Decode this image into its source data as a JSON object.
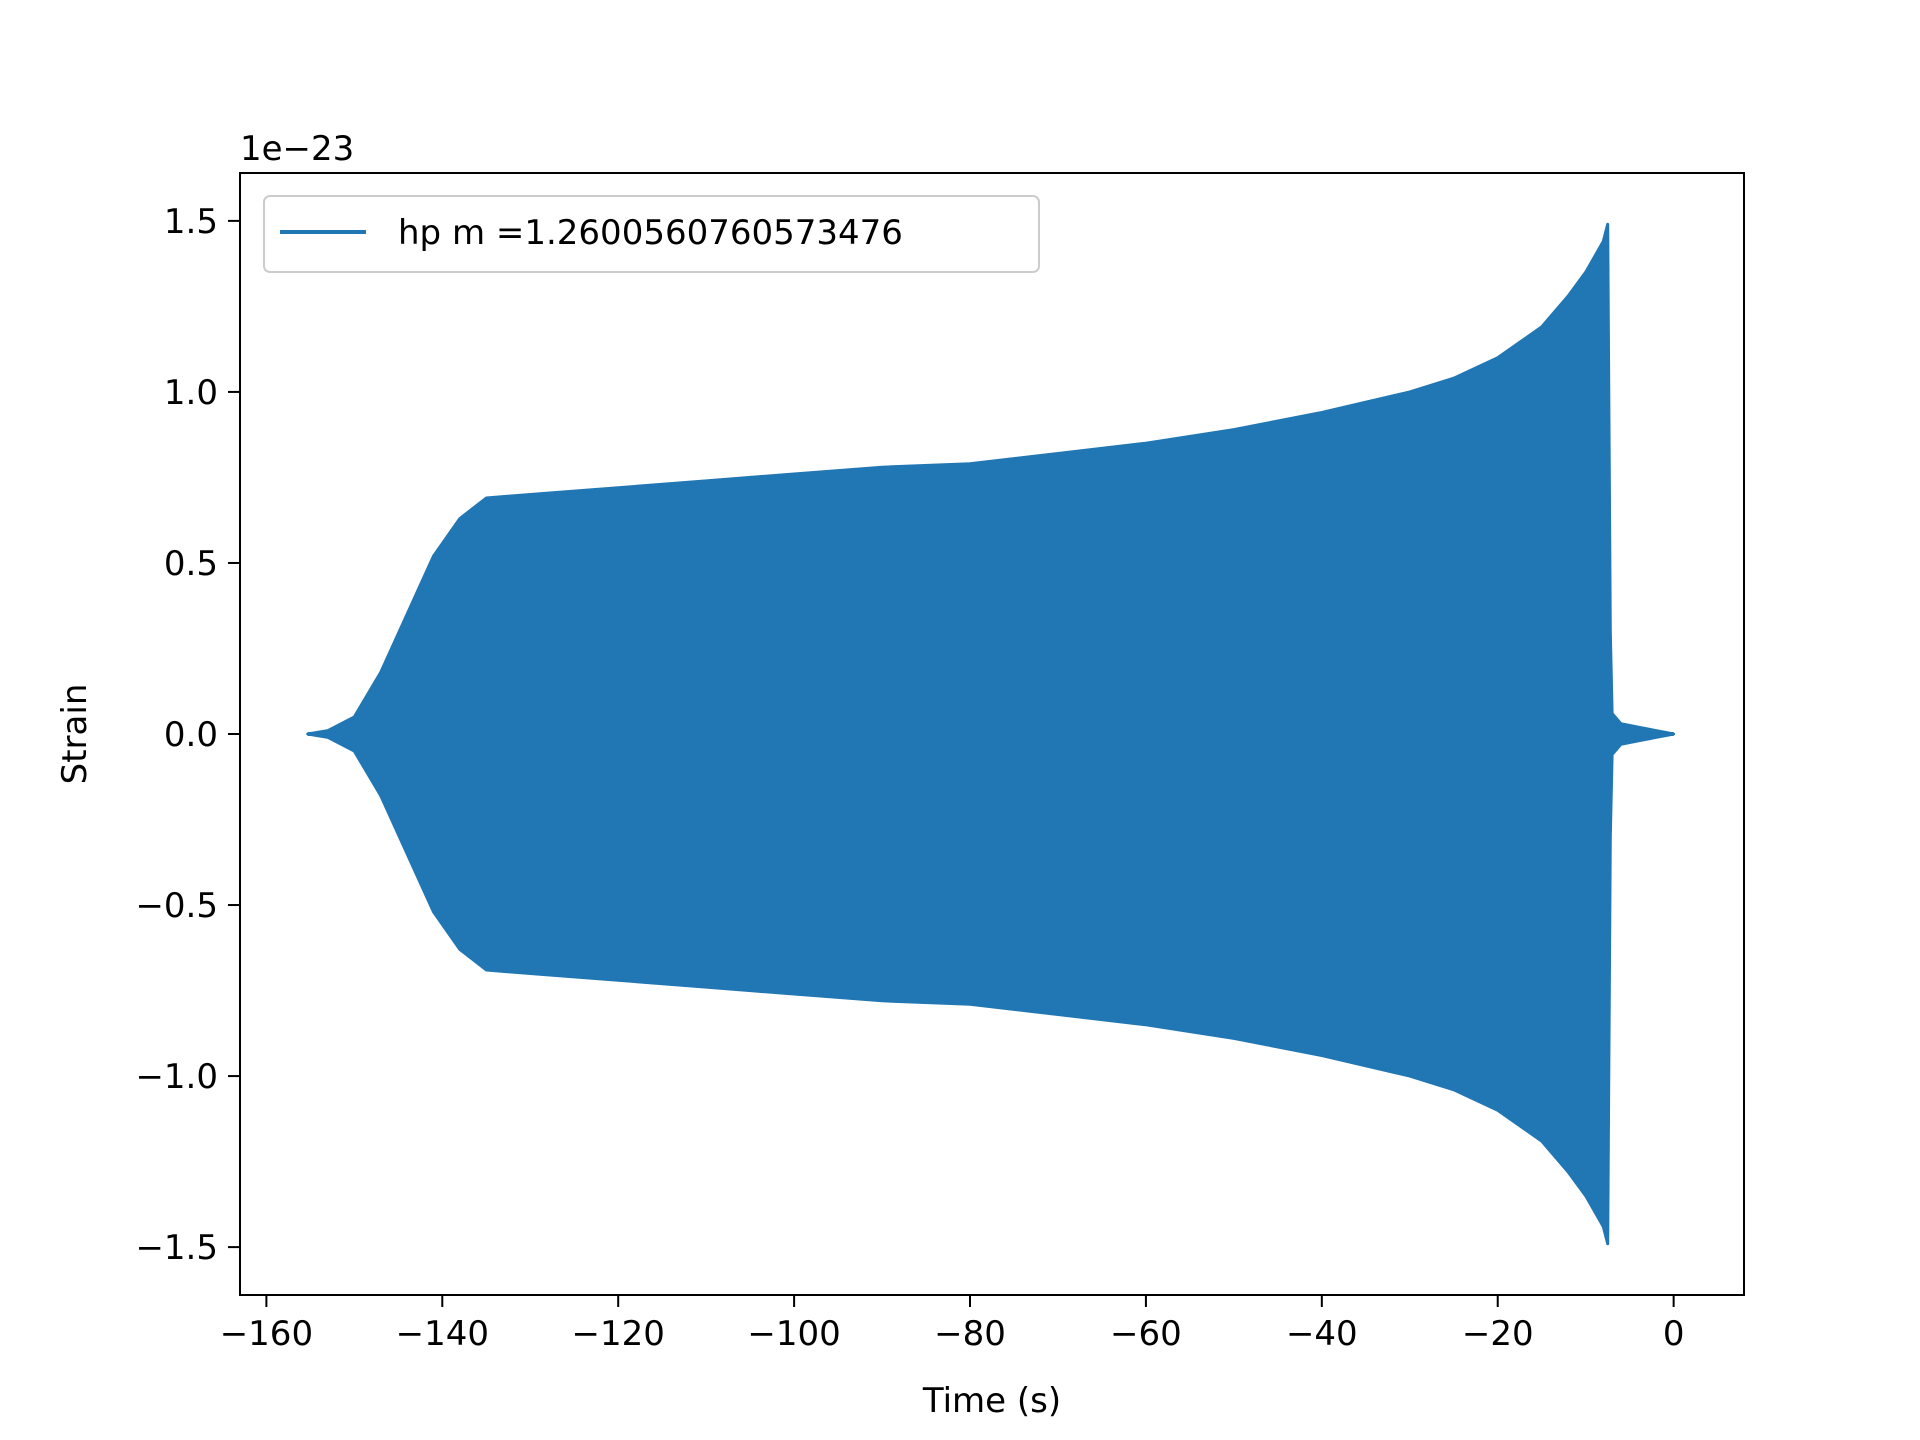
{
  "chart_data": {
    "type": "line",
    "title": "",
    "xlabel": "Time (s)",
    "ylabel": "Strain",
    "offset_label": "1e−23",
    "xlim": [
      -163,
      8
    ],
    "ylim": [
      -1.64,
      1.64
    ],
    "x_ticks": [
      -160,
      -140,
      -120,
      -100,
      -80,
      -60,
      -40,
      -20,
      0
    ],
    "x_tick_labels": [
      "−160",
      "−140",
      "−120",
      "−100",
      "−80",
      "−60",
      "−40",
      "−20",
      "0"
    ],
    "y_ticks": [
      -1.5,
      -1.0,
      -0.5,
      0.0,
      0.5,
      1.0,
      1.5
    ],
    "y_tick_labels": [
      "−1.5",
      "−1.0",
      "−0.5",
      "0.0",
      "0.5",
      "1.0",
      "1.5"
    ],
    "grid": false,
    "legend_position": "upper-left",
    "series": [
      {
        "name": "hp m =1.2600560760573476",
        "color": "#2077b4",
        "envelope": {
          "x": [
            -155.3,
            -153,
            -150,
            -147,
            -144,
            -141,
            -138,
            -135,
            -130,
            -125,
            -120,
            -110,
            -100,
            -90,
            -80,
            -70,
            -60,
            -50,
            -40,
            -30,
            -25,
            -20,
            -15,
            -12,
            -10,
            -8,
            -7.5,
            -7.2,
            -7,
            -6,
            -4,
            -2,
            0
          ],
          "upper": [
            0.0,
            0.01,
            0.05,
            0.18,
            0.35,
            0.52,
            0.63,
            0.69,
            0.7,
            0.71,
            0.72,
            0.74,
            0.76,
            0.78,
            0.79,
            0.82,
            0.85,
            0.89,
            0.94,
            1.0,
            1.04,
            1.1,
            1.19,
            1.28,
            1.35,
            1.44,
            1.49,
            0.3,
            0.06,
            0.03,
            0.02,
            0.01,
            0.0
          ],
          "lower": [
            0.0,
            -0.01,
            -0.05,
            -0.18,
            -0.35,
            -0.52,
            -0.63,
            -0.69,
            -0.7,
            -0.71,
            -0.72,
            -0.74,
            -0.76,
            -0.78,
            -0.79,
            -0.82,
            -0.85,
            -0.89,
            -0.94,
            -1.0,
            -1.04,
            -1.1,
            -1.19,
            -1.28,
            -1.35,
            -1.44,
            -1.49,
            -0.3,
            -0.06,
            -0.03,
            -0.02,
            -0.01,
            0.0
          ]
        }
      }
    ]
  }
}
